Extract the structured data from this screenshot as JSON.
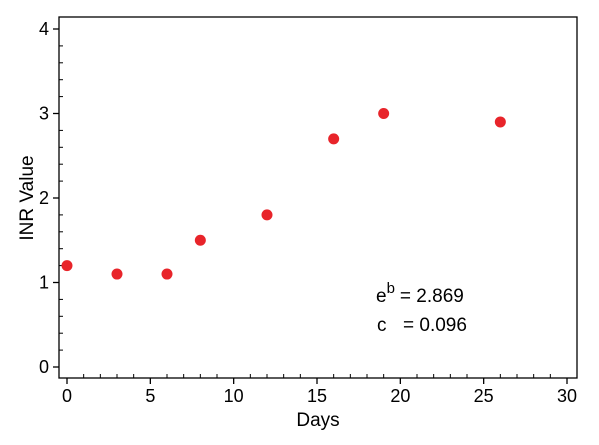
{
  "chart_data": {
    "type": "scatter",
    "title": "",
    "xlabel": "Days",
    "ylabel": "INR Value",
    "xlim": [
      0,
      30
    ],
    "ylim": [
      0,
      4
    ],
    "xticks": [
      0,
      5,
      10,
      15,
      20,
      25,
      30
    ],
    "yticks": [
      0,
      1,
      2,
      3,
      4
    ],
    "x_minor_step": 1,
    "y_minor_step": 0.2,
    "grid": false,
    "legend": "none",
    "marker_color": "#e8242a",
    "series": [
      {
        "x": [
          0,
          3,
          6,
          8,
          12,
          16,
          19,
          26
        ],
        "y": [
          1.2,
          1.1,
          1.1,
          1.5,
          1.8,
          2.7,
          3.0,
          2.9
        ]
      }
    ],
    "annotations": {
      "eb_base": "e",
      "eb_sup": "b",
      "eb_value": "= 2.869",
      "c_label": "c",
      "c_value": "= 0.096"
    }
  }
}
